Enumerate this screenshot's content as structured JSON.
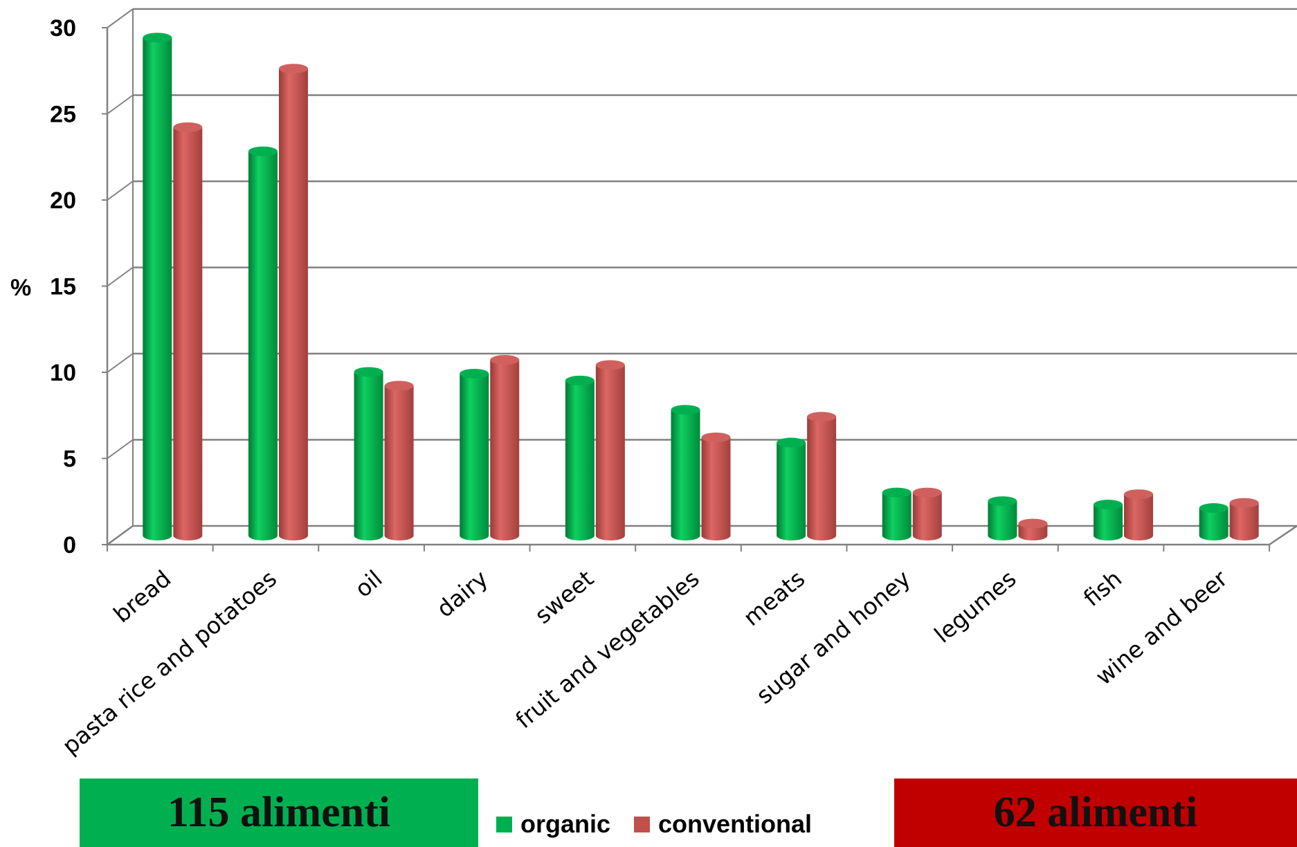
{
  "colors": {
    "organic": "#00b050",
    "conventional": "#c0504d",
    "box_left": "#00b050",
    "box_right": "#c00000",
    "grid": "#808080"
  },
  "boxes": {
    "left_label": "115 alimenti",
    "right_label": "62 alimenti"
  },
  "chart_data": {
    "type": "bar",
    "title": "",
    "xlabel": "",
    "ylabel": "%",
    "ylim": [
      0,
      30
    ],
    "yticks": [
      0,
      5,
      10,
      15,
      20,
      25,
      30
    ],
    "grid": true,
    "legend_position": "bottom",
    "categories": [
      "bread",
      "pasta rice and potatoes",
      "oil",
      "dairy",
      "sweet",
      "fruit and vegetables",
      "meats",
      "sugar and honey",
      "legumes",
      "fish",
      "wine and beer"
    ],
    "series": [
      {
        "name": "organic",
        "values": [
          28.9,
          22.3,
          9.5,
          9.4,
          9.0,
          7.3,
          5.4,
          2.5,
          2.0,
          1.8,
          1.6
        ]
      },
      {
        "name": "conventional",
        "values": [
          23.7,
          27.1,
          8.7,
          10.2,
          9.9,
          5.7,
          6.9,
          2.5,
          0.7,
          2.4,
          1.9
        ]
      }
    ]
  }
}
